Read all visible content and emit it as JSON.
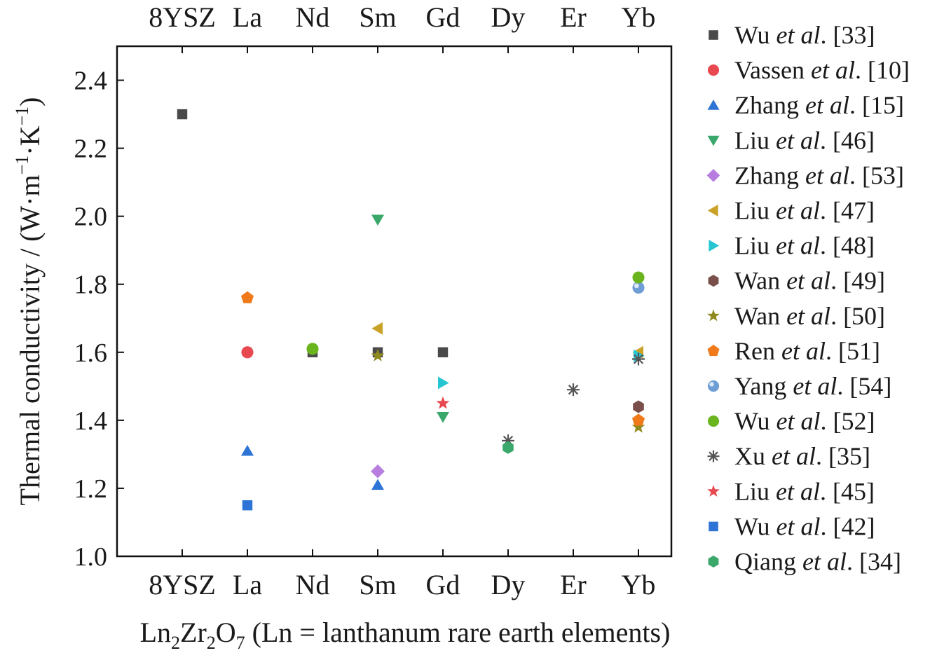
{
  "chart_data": {
    "type": "scatter",
    "categories": [
      "8YSZ",
      "La",
      "Nd",
      "Sm",
      "Gd",
      "Dy",
      "Er",
      "Yb"
    ],
    "xlabel": {
      "pre": "Ln",
      "sub1": "2",
      "mid": "Zr",
      "sub2": "2",
      "mid2": "O",
      "sub3": "7",
      "post": " (Ln = lanthanum rare earth elements)"
    },
    "ylabel": {
      "pre": "Thermal conductivity / (W·m",
      "sup1": "−1",
      "mid": "·K",
      "sup2": "−1",
      "post": ")"
    },
    "ylim": [
      1.0,
      2.5
    ],
    "yticks": [
      "1.0",
      "1.2",
      "1.4",
      "1.6",
      "1.8",
      "2.0",
      "2.2",
      "2.4"
    ],
    "grid": false,
    "legend_position": "right, outside plot",
    "series": [
      {
        "author": "Wu",
        "ref": "[33]",
        "color": "#4a4a4a",
        "marker": "square",
        "points": [
          {
            "x": "8YSZ",
            "y": 2.3
          },
          {
            "x": "Nd",
            "y": 1.6
          },
          {
            "x": "Sm",
            "y": 1.6
          },
          {
            "x": "Gd",
            "y": 1.6
          }
        ]
      },
      {
        "author": "Vassen",
        "ref": "[10]",
        "color": "#e8484f",
        "marker": "circle",
        "points": [
          {
            "x": "La",
            "y": 1.6
          }
        ]
      },
      {
        "author": "Zhang",
        "ref": "[15]",
        "color": "#2e74d6",
        "marker": "triangle-up",
        "points": [
          {
            "x": "La",
            "y": 1.31
          },
          {
            "x": "Sm",
            "y": 1.21
          }
        ]
      },
      {
        "author": "Liu",
        "ref": "[46]",
        "color": "#3aa86a",
        "marker": "triangle-down",
        "points": [
          {
            "x": "Sm",
            "y": 1.99
          },
          {
            "x": "Gd",
            "y": 1.41
          }
        ]
      },
      {
        "author": "Zhang",
        "ref": "[53]",
        "color": "#b77ee0",
        "marker": "diamond",
        "points": [
          {
            "x": "Sm",
            "y": 1.25
          }
        ]
      },
      {
        "author": "Liu",
        "ref": "[47]",
        "color": "#c9a227",
        "marker": "triangle-left",
        "points": [
          {
            "x": "Sm",
            "y": 1.67
          },
          {
            "x": "Yb",
            "y": 1.6
          }
        ]
      },
      {
        "author": "Liu",
        "ref": "[48]",
        "color": "#25c6d2",
        "marker": "triangle-right",
        "points": [
          {
            "x": "Gd",
            "y": 1.51
          },
          {
            "x": "Yb",
            "y": 1.59
          }
        ]
      },
      {
        "author": "Wan",
        "ref": "[49]",
        "color": "#7a4e4a",
        "marker": "hexagon",
        "points": [
          {
            "x": "Yb",
            "y": 1.44
          }
        ]
      },
      {
        "author": "Wan",
        "ref": "[50]",
        "color": "#8f8a1e",
        "marker": "star",
        "points": [
          {
            "x": "Sm",
            "y": 1.59
          },
          {
            "x": "Yb",
            "y": 1.38
          }
        ]
      },
      {
        "author": "Ren",
        "ref": "[51]",
        "color": "#f07a1a",
        "marker": "pentagon",
        "points": [
          {
            "x": "La",
            "y": 1.76
          },
          {
            "x": "Yb",
            "y": 1.4
          }
        ]
      },
      {
        "author": "Yang",
        "ref": "[54]",
        "color": "#6f9ed6",
        "marker": "sphere",
        "points": [
          {
            "x": "Yb",
            "y": 1.79
          }
        ]
      },
      {
        "author": "Wu",
        "ref": "[52]",
        "color": "#6ab51e",
        "marker": "circle",
        "points": [
          {
            "x": "Nd",
            "y": 1.61
          },
          {
            "x": "Yb",
            "y": 1.82
          }
        ]
      },
      {
        "author": "Xu",
        "ref": "[35]",
        "color": "#555555",
        "marker": "asterisk",
        "points": [
          {
            "x": "Dy",
            "y": 1.34
          },
          {
            "x": "Er",
            "y": 1.49
          },
          {
            "x": "Yb",
            "y": 1.58
          }
        ]
      },
      {
        "author": "Liu",
        "ref": "[45]",
        "color": "#e8484f",
        "marker": "star",
        "points": [
          {
            "x": "Gd",
            "y": 1.45
          }
        ]
      },
      {
        "author": "Wu",
        "ref": "[42]",
        "color": "#2e74d6",
        "marker": "square",
        "points": [
          {
            "x": "La",
            "y": 1.15
          }
        ]
      },
      {
        "author": "Qiang",
        "ref": "[34]",
        "color": "#3aa86a",
        "marker": "hexagon",
        "points": [
          {
            "x": "Dy",
            "y": 1.32
          }
        ]
      }
    ]
  }
}
